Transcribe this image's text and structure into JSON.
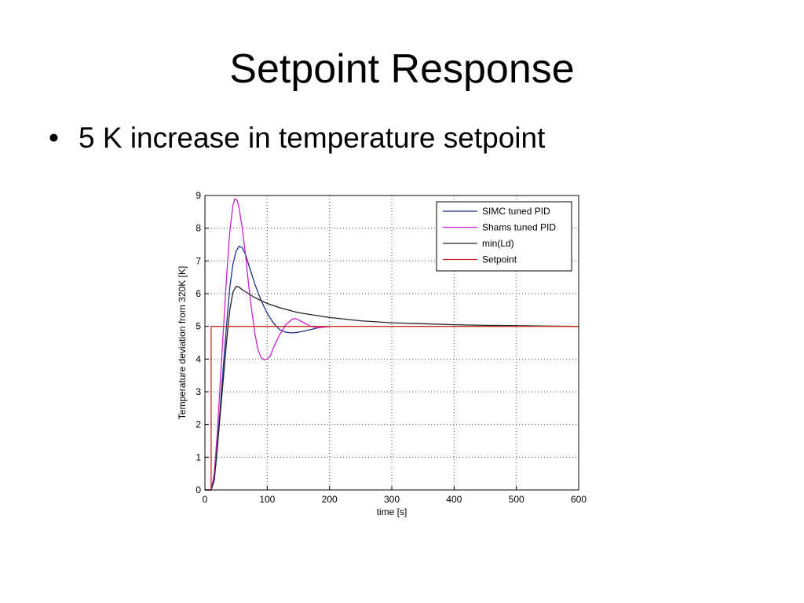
{
  "slide": {
    "title": "Setpoint Response",
    "bullets": [
      "5 K increase in temperature setpoint"
    ],
    "bullet_glyph": "•"
  },
  "chart_data": {
    "type": "line",
    "title": "",
    "xlabel": "time [s]",
    "ylabel": "Temperature deviation from 320K [K]",
    "xlim": [
      0,
      600
    ],
    "ylim": [
      0,
      9
    ],
    "xticks": [
      0,
      100,
      200,
      300,
      400,
      500,
      600
    ],
    "yticks": [
      0,
      1,
      2,
      3,
      4,
      5,
      6,
      7,
      8,
      9
    ],
    "grid": true,
    "legend_position": "top-right",
    "series": [
      {
        "name": "SIMC tuned PID",
        "color": "#1f2f8c",
        "points": [
          [
            0,
            0
          ],
          [
            10,
            0
          ],
          [
            15,
            0.3
          ],
          [
            20,
            1.4
          ],
          [
            25,
            2.6
          ],
          [
            30,
            3.9
          ],
          [
            35,
            5.1
          ],
          [
            40,
            6.2
          ],
          [
            45,
            6.9
          ],
          [
            50,
            7.3
          ],
          [
            55,
            7.45
          ],
          [
            60,
            7.4
          ],
          [
            65,
            7.2
          ],
          [
            70,
            6.9
          ],
          [
            80,
            6.3
          ],
          [
            90,
            5.8
          ],
          [
            100,
            5.4
          ],
          [
            110,
            5.1
          ],
          [
            120,
            4.9
          ],
          [
            130,
            4.82
          ],
          [
            140,
            4.8
          ],
          [
            150,
            4.82
          ],
          [
            160,
            4.86
          ],
          [
            170,
            4.9
          ],
          [
            180,
            4.95
          ],
          [
            190,
            4.98
          ],
          [
            200,
            5.0
          ]
        ]
      },
      {
        "name": "Shams tuned PID",
        "color": "#d020d0",
        "points": [
          [
            0,
            0
          ],
          [
            10,
            0
          ],
          [
            15,
            0.5
          ],
          [
            20,
            1.8
          ],
          [
            25,
            3.4
          ],
          [
            30,
            5.0
          ],
          [
            35,
            6.6
          ],
          [
            40,
            7.9
          ],
          [
            45,
            8.7
          ],
          [
            48,
            8.9
          ],
          [
            52,
            8.85
          ],
          [
            55,
            8.6
          ],
          [
            60,
            8.0
          ],
          [
            65,
            7.2
          ],
          [
            70,
            6.3
          ],
          [
            75,
            5.5
          ],
          [
            80,
            4.8
          ],
          [
            85,
            4.3
          ],
          [
            90,
            4.05
          ],
          [
            95,
            3.98
          ],
          [
            100,
            4.0
          ],
          [
            105,
            4.1
          ],
          [
            110,
            4.35
          ],
          [
            120,
            4.75
          ],
          [
            130,
            5.05
          ],
          [
            140,
            5.22
          ],
          [
            145,
            5.24
          ],
          [
            150,
            5.2
          ],
          [
            160,
            5.1
          ],
          [
            170,
            5.0
          ],
          [
            180,
            4.96
          ],
          [
            190,
            4.97
          ],
          [
            200,
            5.0
          ]
        ]
      },
      {
        "name": "min(Ld)",
        "color": "#202020",
        "points": [
          [
            0,
            0
          ],
          [
            10,
            0
          ],
          [
            15,
            0.3
          ],
          [
            20,
            1.3
          ],
          [
            25,
            2.4
          ],
          [
            30,
            3.5
          ],
          [
            35,
            4.6
          ],
          [
            40,
            5.5
          ],
          [
            45,
            6.05
          ],
          [
            50,
            6.22
          ],
          [
            55,
            6.2
          ],
          [
            60,
            6.12
          ],
          [
            70,
            6.0
          ],
          [
            80,
            5.88
          ],
          [
            100,
            5.7
          ],
          [
            120,
            5.57
          ],
          [
            150,
            5.42
          ],
          [
            200,
            5.27
          ],
          [
            250,
            5.17
          ],
          [
            300,
            5.11
          ],
          [
            350,
            5.08
          ],
          [
            400,
            5.05
          ],
          [
            450,
            5.03
          ],
          [
            500,
            5.02
          ],
          [
            550,
            5.01
          ],
          [
            600,
            5.0
          ]
        ]
      },
      {
        "name": "Setpoint",
        "color": "#cc2a1e",
        "points": [
          [
            0,
            0
          ],
          [
            10,
            0
          ],
          [
            10,
            5
          ],
          [
            600,
            5
          ]
        ]
      }
    ]
  }
}
